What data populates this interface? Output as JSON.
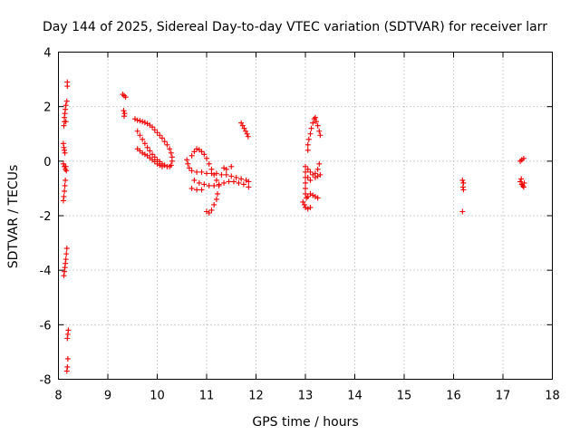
{
  "chart_data": {
    "type": "scatter",
    "title": "Day 144 of 2025, Sidereal Day-to-day VTEC variation (SDTVAR) for receiver larr",
    "xlabel": "GPS time / hours",
    "ylabel": "SDTVAR / TECUs",
    "xlim": [
      8,
      18
    ],
    "ylim": [
      -8,
      4
    ],
    "xticks": [
      "8",
      "9",
      "10",
      "11",
      "12",
      "13",
      "14",
      "15",
      "16",
      "17",
      "18"
    ],
    "yticks": [
      "4",
      "2",
      "0",
      "-2",
      "-4",
      "-6",
      "-8"
    ],
    "grid": true,
    "marker": "plus",
    "color": "#ee0000",
    "series": [
      {
        "name": "SDTVAR",
        "points": [
          [
            8.18,
            2.9
          ],
          [
            8.18,
            2.75
          ],
          [
            8.17,
            2.2
          ],
          [
            8.15,
            2.05
          ],
          [
            8.14,
            1.9
          ],
          [
            8.13,
            1.75
          ],
          [
            8.12,
            1.6
          ],
          [
            8.12,
            1.45
          ],
          [
            8.11,
            1.3
          ],
          [
            8.15,
            1.45
          ],
          [
            8.1,
            0.65
          ],
          [
            8.11,
            0.5
          ],
          [
            8.12,
            0.4
          ],
          [
            8.13,
            0.3
          ],
          [
            8.1,
            -0.1
          ],
          [
            8.12,
            -0.2
          ],
          [
            8.14,
            -0.3
          ],
          [
            8.15,
            -0.2
          ],
          [
            8.16,
            -0.35
          ],
          [
            8.14,
            -0.7
          ],
          [
            8.13,
            -0.9
          ],
          [
            8.12,
            -1.1
          ],
          [
            8.11,
            -1.3
          ],
          [
            8.1,
            -1.45
          ],
          [
            8.17,
            -3.2
          ],
          [
            8.16,
            -3.4
          ],
          [
            8.15,
            -3.6
          ],
          [
            8.14,
            -3.75
          ],
          [
            8.13,
            -3.9
          ],
          [
            8.12,
            -4.05
          ],
          [
            8.11,
            -4.2
          ],
          [
            8.2,
            -6.2
          ],
          [
            8.19,
            -6.35
          ],
          [
            8.18,
            -6.5
          ],
          [
            8.19,
            -7.25
          ],
          [
            8.18,
            -7.55
          ],
          [
            8.17,
            -7.7
          ],
          [
            9.3,
            2.45
          ],
          [
            9.33,
            2.4
          ],
          [
            9.36,
            2.35
          ],
          [
            9.32,
            1.85
          ],
          [
            9.34,
            1.75
          ],
          [
            9.33,
            1.65
          ],
          [
            9.55,
            1.55
          ],
          [
            9.6,
            1.5
          ],
          [
            9.65,
            1.48
          ],
          [
            9.7,
            1.45
          ],
          [
            9.75,
            1.42
          ],
          [
            9.8,
            1.38
          ],
          [
            9.85,
            1.32
          ],
          [
            9.9,
            1.25
          ],
          [
            9.95,
            1.15
          ],
          [
            10.0,
            1.05
          ],
          [
            10.05,
            0.95
          ],
          [
            10.1,
            0.85
          ],
          [
            10.15,
            0.72
          ],
          [
            10.2,
            0.6
          ],
          [
            10.25,
            0.45
          ],
          [
            10.28,
            0.3
          ],
          [
            10.3,
            0.15
          ],
          [
            10.3,
            0.0
          ],
          [
            10.28,
            -0.15
          ],
          [
            10.25,
            -0.2
          ],
          [
            10.2,
            -0.2
          ],
          [
            10.15,
            -0.15
          ],
          [
            10.1,
            -0.1
          ],
          [
            10.05,
            -0.02
          ],
          [
            10.0,
            0.05
          ],
          [
            9.95,
            0.15
          ],
          [
            9.9,
            0.25
          ],
          [
            9.85,
            0.38
          ],
          [
            9.8,
            0.5
          ],
          [
            9.75,
            0.65
          ],
          [
            9.7,
            0.8
          ],
          [
            9.65,
            0.95
          ],
          [
            9.6,
            1.1
          ],
          [
            9.6,
            0.45
          ],
          [
            9.65,
            0.38
          ],
          [
            9.7,
            0.3
          ],
          [
            9.75,
            0.25
          ],
          [
            9.8,
            0.2
          ],
          [
            9.85,
            0.12
          ],
          [
            9.9,
            0.05
          ],
          [
            9.95,
            -0.02
          ],
          [
            10.0,
            -0.1
          ],
          [
            10.05,
            -0.15
          ],
          [
            10.1,
            -0.2
          ],
          [
            10.6,
            0.05
          ],
          [
            10.62,
            -0.1
          ],
          [
            10.65,
            -0.25
          ],
          [
            10.7,
            0.2
          ],
          [
            10.75,
            0.35
          ],
          [
            10.8,
            0.45
          ],
          [
            10.85,
            0.42
          ],
          [
            10.9,
            0.35
          ],
          [
            10.95,
            0.25
          ],
          [
            11.0,
            0.1
          ],
          [
            11.05,
            -0.1
          ],
          [
            11.1,
            -0.3
          ],
          [
            11.15,
            -0.5
          ],
          [
            11.2,
            -0.7
          ],
          [
            11.25,
            -0.9
          ],
          [
            10.7,
            -0.35
          ],
          [
            10.8,
            -0.4
          ],
          [
            10.9,
            -0.4
          ],
          [
            11.0,
            -0.45
          ],
          [
            11.1,
            -0.45
          ],
          [
            11.2,
            -0.45
          ],
          [
            11.3,
            -0.5
          ],
          [
            11.4,
            -0.5
          ],
          [
            11.5,
            -0.55
          ],
          [
            11.6,
            -0.6
          ],
          [
            11.7,
            -0.65
          ],
          [
            11.8,
            -0.7
          ],
          [
            11.85,
            -0.75
          ],
          [
            11.85,
            -0.95
          ],
          [
            10.75,
            -0.7
          ],
          [
            10.85,
            -0.8
          ],
          [
            10.95,
            -0.85
          ],
          [
            11.05,
            -0.9
          ],
          [
            11.15,
            -0.9
          ],
          [
            11.25,
            -0.85
          ],
          [
            11.35,
            -0.8
          ],
          [
            11.45,
            -0.75
          ],
          [
            11.55,
            -0.75
          ],
          [
            11.65,
            -0.8
          ],
          [
            11.75,
            -0.85
          ],
          [
            10.7,
            -1.0
          ],
          [
            10.8,
            -1.05
          ],
          [
            10.9,
            -1.05
          ],
          [
            11.0,
            -1.85
          ],
          [
            11.05,
            -1.9
          ],
          [
            11.1,
            -1.8
          ],
          [
            11.15,
            -1.6
          ],
          [
            11.2,
            -1.4
          ],
          [
            11.22,
            -1.2
          ],
          [
            11.4,
            -0.3
          ],
          [
            11.5,
            -0.2
          ],
          [
            11.35,
            -0.25
          ],
          [
            11.7,
            1.4
          ],
          [
            11.73,
            1.3
          ],
          [
            11.76,
            1.2
          ],
          [
            11.79,
            1.1
          ],
          [
            11.82,
            1.0
          ],
          [
            11.84,
            0.9
          ],
          [
            12.95,
            -1.5
          ],
          [
            12.98,
            -1.6
          ],
          [
            13.0,
            -1.7
          ],
          [
            13.05,
            -1.75
          ],
          [
            13.1,
            -1.7
          ],
          [
            13.0,
            -0.2
          ],
          [
            13.0,
            -0.4
          ],
          [
            13.0,
            -0.6
          ],
          [
            13.0,
            -0.8
          ],
          [
            13.0,
            -1.0
          ],
          [
            13.0,
            -1.2
          ],
          [
            13.02,
            -1.35
          ],
          [
            13.05,
            -1.3
          ],
          [
            13.1,
            -1.2
          ],
          [
            13.15,
            -1.25
          ],
          [
            13.2,
            -1.3
          ],
          [
            13.25,
            -1.35
          ],
          [
            13.05,
            0.4
          ],
          [
            13.05,
            0.6
          ],
          [
            13.07,
            0.8
          ],
          [
            13.1,
            1.0
          ],
          [
            13.12,
            1.2
          ],
          [
            13.15,
            1.4
          ],
          [
            13.18,
            1.55
          ],
          [
            13.2,
            1.6
          ],
          [
            13.22,
            1.45
          ],
          [
            13.25,
            1.3
          ],
          [
            13.28,
            1.1
          ],
          [
            13.3,
            0.95
          ],
          [
            13.05,
            -0.3
          ],
          [
            13.1,
            -0.4
          ],
          [
            13.15,
            -0.5
          ],
          [
            13.2,
            -0.45
          ],
          [
            13.25,
            -0.3
          ],
          [
            13.28,
            -0.1
          ],
          [
            13.05,
            -0.6
          ],
          [
            13.1,
            -0.7
          ],
          [
            13.2,
            -0.6
          ],
          [
            13.25,
            -0.55
          ],
          [
            13.3,
            -0.5
          ],
          [
            16.18,
            -0.7
          ],
          [
            16.2,
            -0.8
          ],
          [
            16.19,
            -0.95
          ],
          [
            16.2,
            -1.05
          ],
          [
            16.18,
            -1.85
          ],
          [
            17.35,
            0.0
          ],
          [
            17.38,
            0.05
          ],
          [
            17.42,
            0.1
          ],
          [
            17.35,
            -0.75
          ],
          [
            17.38,
            -0.85
          ],
          [
            17.4,
            -0.9
          ],
          [
            17.42,
            -0.95
          ],
          [
            17.43,
            -0.8
          ],
          [
            17.37,
            -0.65
          ]
        ]
      }
    ]
  }
}
